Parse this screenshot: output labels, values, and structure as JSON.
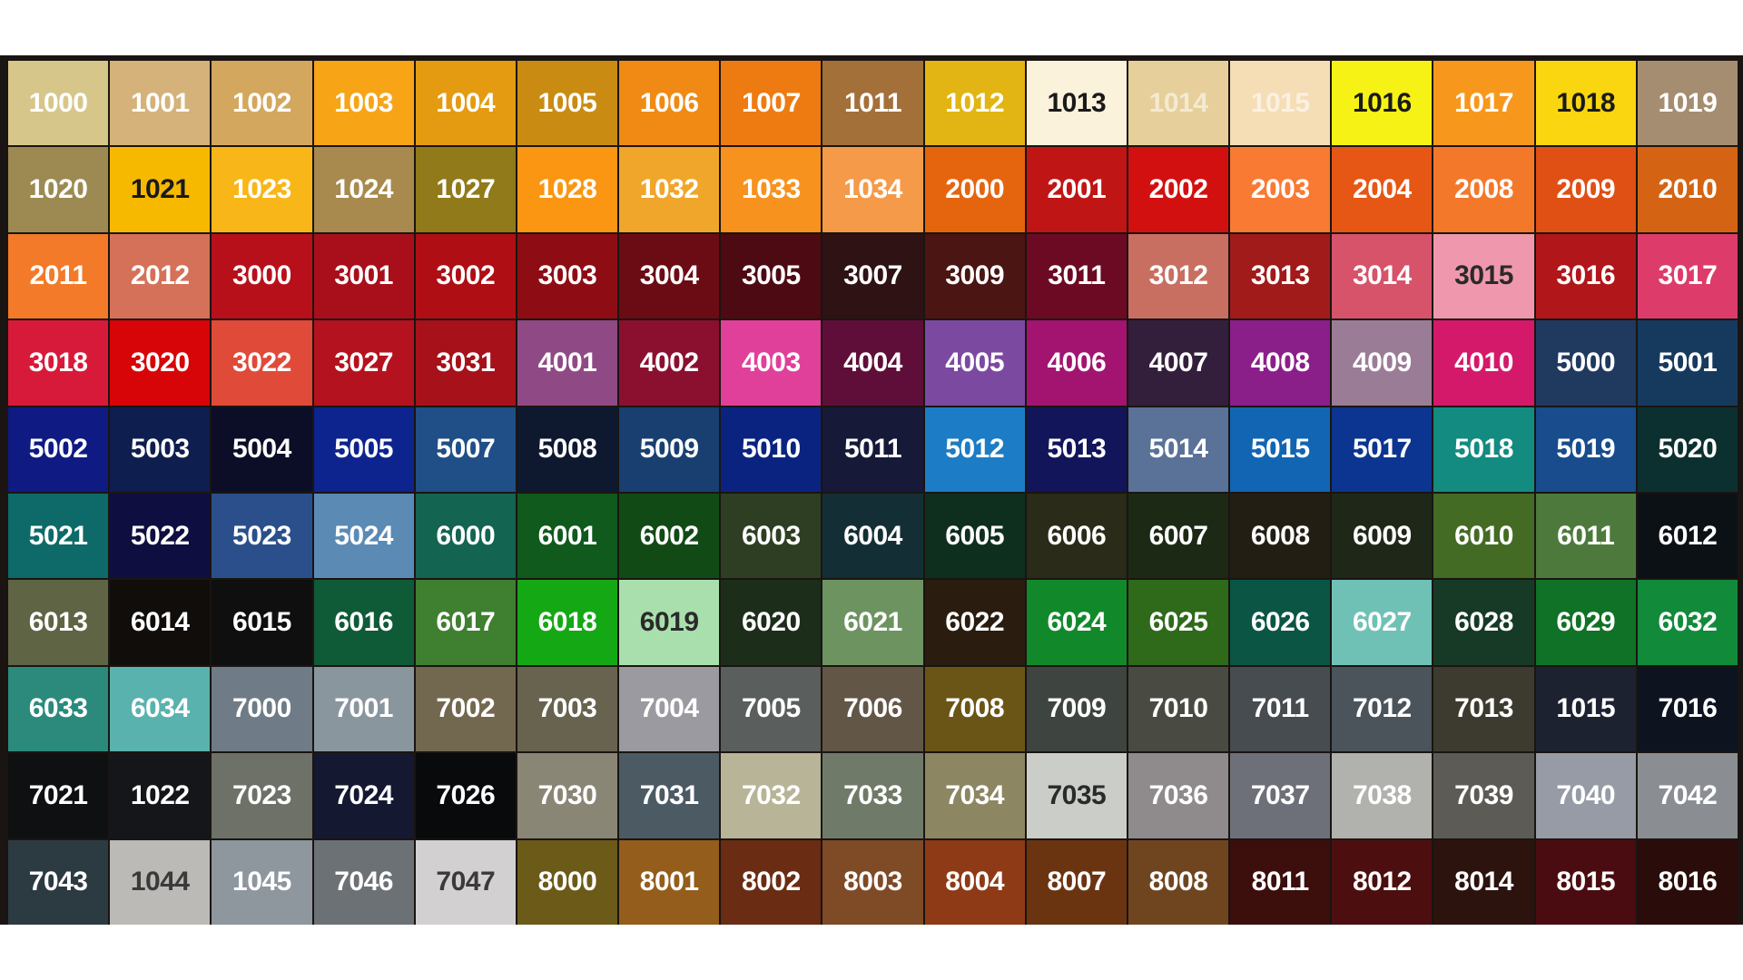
{
  "rows": [
    [
      [
        "1000",
        "#d6c68a"
      ],
      [
        "1001",
        "#d4b27a"
      ],
      [
        "1002",
        "#d3a75e"
      ],
      [
        "1003",
        "#f8a417"
      ],
      [
        "1004",
        "#e49b12"
      ],
      [
        "1005",
        "#c98b12"
      ],
      [
        "1006",
        "#f08a14"
      ],
      [
        "1007",
        "#ee7b12"
      ],
      [
        "1011",
        "#a4703a"
      ],
      [
        "1012",
        "#e2b514"
      ],
      [
        "1013",
        "#fbf2dc",
        "#1a1a1a"
      ],
      [
        "1014",
        "#e6cf9a",
        "#f4ead2"
      ],
      [
        "1015",
        "#f5ddb6",
        "#fbf1e2"
      ],
      [
        "1016",
        "#f7f216",
        "#1a1a1a"
      ],
      [
        "1017",
        "#f7981d"
      ],
      [
        "1018",
        "#fad610",
        "#1a1a1a"
      ],
      [
        "1019",
        "#a48d70"
      ]
    ],
    [
      [
        "1020",
        "#9c8a52"
      ],
      [
        "1021",
        "#f6b900",
        "#1a1a1a"
      ],
      [
        "1023",
        "#f9b619"
      ],
      [
        "1024",
        "#a88a4e"
      ],
      [
        "1027",
        "#917a1a"
      ],
      [
        "1028",
        "#fa9612"
      ],
      [
        "1032",
        "#f0a62a"
      ],
      [
        "1033",
        "#f8921e"
      ],
      [
        "1034",
        "#f59a48"
      ],
      [
        "2000",
        "#e5650f"
      ],
      [
        "2001",
        "#c01515"
      ],
      [
        "2002",
        "#d31010"
      ],
      [
        "2003",
        "#f97a32"
      ],
      [
        "2004",
        "#e65614"
      ],
      [
        "2008",
        "#f4782a"
      ],
      [
        "2009",
        "#e04f14"
      ],
      [
        "2010",
        "#d46413"
      ]
    ],
    [
      [
        "2011",
        "#f27a28"
      ],
      [
        "2012",
        "#d57158"
      ],
      [
        "3000",
        "#b8101a"
      ],
      [
        "3001",
        "#a80f1a"
      ],
      [
        "3002",
        "#ae0e14"
      ],
      [
        "3003",
        "#8e0d14"
      ],
      [
        "3004",
        "#6b0c14"
      ],
      [
        "3005",
        "#4e0a12"
      ],
      [
        "3007",
        "#2e1214"
      ],
      [
        "3009",
        "#4a1512"
      ],
      [
        "3011",
        "#6c0a24"
      ],
      [
        "3012",
        "#c86f62"
      ],
      [
        "3013",
        "#a11b1b"
      ],
      [
        "3014",
        "#d6536a"
      ],
      [
        "3015",
        "#ef98ad",
        "#2a2a2a"
      ],
      [
        "3016",
        "#b1161a"
      ],
      [
        "3017",
        "#dd3c6a"
      ]
    ],
    [
      [
        "3018",
        "#d81a3a"
      ],
      [
        "3020",
        "#d70508"
      ],
      [
        "3022",
        "#e04a38"
      ],
      [
        "3027",
        "#b5121f"
      ],
      [
        "3031",
        "#a6111a"
      ],
      [
        "4001",
        "#8f4a85"
      ],
      [
        "4002",
        "#8b1030"
      ],
      [
        "4003",
        "#e0409a"
      ],
      [
        "4004",
        "#5e0e38"
      ],
      [
        "4005",
        "#7b4aa0"
      ],
      [
        "4006",
        "#a21470"
      ],
      [
        "4007",
        "#331e3c"
      ],
      [
        "4008",
        "#8a1f8a"
      ],
      [
        "4009",
        "#9b7c97"
      ],
      [
        "4010",
        "#d4196a"
      ],
      [
        "5000",
        "#20395f"
      ],
      [
        "5001",
        "#163a5e"
      ]
    ],
    [
      [
        "5002",
        "#0f1a82"
      ],
      [
        "5003",
        "#0e1e4f"
      ],
      [
        "5004",
        "#0c0e28"
      ],
      [
        "5005",
        "#0d238e"
      ],
      [
        "5007",
        "#1f4f86"
      ],
      [
        "5008",
        "#0e1930"
      ],
      [
        "5009",
        "#183f70"
      ],
      [
        "5010",
        "#0b2380"
      ],
      [
        "5011",
        "#161938"
      ],
      [
        "5012",
        "#1c7cc5"
      ],
      [
        "5013",
        "#12155a"
      ],
      [
        "5014",
        "#5a7198"
      ],
      [
        "5015",
        "#1165b3"
      ],
      [
        "5017",
        "#0b3590"
      ],
      [
        "5018",
        "#138b80"
      ],
      [
        "5019",
        "#184c8c"
      ],
      [
        "5020",
        "#0c3030"
      ]
    ],
    [
      [
        "5021",
        "#0d6a68"
      ],
      [
        "5022",
        "#0e0e40"
      ],
      [
        "5023",
        "#2a4f8a"
      ],
      [
        "5024",
        "#5b8ab4"
      ],
      [
        "6000",
        "#136450"
      ],
      [
        "6001",
        "#0f5a1c"
      ],
      [
        "6002",
        "#124a16"
      ],
      [
        "6003",
        "#2e3e22"
      ],
      [
        "6004",
        "#132f35"
      ],
      [
        "6005",
        "#0e2e1e"
      ],
      [
        "6006",
        "#2a2b18"
      ],
      [
        "6007",
        "#1c2a15"
      ],
      [
        "6008",
        "#231e14"
      ],
      [
        "6009",
        "#1f2818"
      ],
      [
        "6010",
        "#436b23"
      ],
      [
        "6011",
        "#4d7a3c"
      ],
      [
        "6012",
        "#0c1116"
      ]
    ],
    [
      [
        "6013",
        "#5f6444"
      ],
      [
        "6014",
        "#110d0b"
      ],
      [
        "6015",
        "#0e0f0e"
      ],
      [
        "6016",
        "#0f5a37"
      ],
      [
        "6017",
        "#3e7f30"
      ],
      [
        "6018",
        "#15a815"
      ],
      [
        "6019",
        "#a9dfac",
        "#2a2a2a"
      ],
      [
        "6020",
        "#1c2e1a"
      ],
      [
        "6021",
        "#6d9460"
      ],
      [
        "6022",
        "#2a1d10"
      ],
      [
        "6024",
        "#11892a"
      ],
      [
        "6025",
        "#2e6a1a"
      ],
      [
        "6026",
        "#0b5545"
      ],
      [
        "6027",
        "#6fc1b6"
      ],
      [
        "6028",
        "#173a26"
      ],
      [
        "6029",
        "#0f7226"
      ],
      [
        "6032",
        "#118a3a"
      ]
    ],
    [
      [
        "6033",
        "#2b8a7c"
      ],
      [
        "6034",
        "#5ab2ae"
      ],
      [
        "7000",
        "#6f7b86"
      ],
      [
        "7001",
        "#8a969e"
      ],
      [
        "7002",
        "#72684f"
      ],
      [
        "7003",
        "#67634f"
      ],
      [
        "7004",
        "#9a9aa0"
      ],
      [
        "7005",
        "#5a5e5c"
      ],
      [
        "7006",
        "#625646"
      ],
      [
        "7008",
        "#6b5516"
      ],
      [
        "7009",
        "#3e4540"
      ],
      [
        "7010",
        "#494b42"
      ],
      [
        "7011",
        "#474c51"
      ],
      [
        "7012",
        "#4a545a"
      ],
      [
        "7013",
        "#3d3b30"
      ],
      [
        "1015",
        "#1c2230"
      ],
      [
        "7016",
        "#0d1420"
      ]
    ],
    [
      [
        "7021",
        "#0e1012"
      ],
      [
        "1022",
        "#141619"
      ],
      [
        "7023",
        "#6d7168"
      ],
      [
        "7024",
        "#141830"
      ],
      [
        "7026",
        "#080a0c"
      ],
      [
        "7030",
        "#8a8676"
      ],
      [
        "7031",
        "#4c5a64"
      ],
      [
        "7032",
        "#b8b498"
      ],
      [
        "7033",
        "#707a68"
      ],
      [
        "7034",
        "#8c8662"
      ],
      [
        "7035",
        "#cbcdc8",
        "#2a2a2a"
      ],
      [
        "7036",
        "#8f8a8c"
      ],
      [
        "7037",
        "#6d7078"
      ],
      [
        "7038",
        "#b1b2ae"
      ],
      [
        "7039",
        "#5c5b56"
      ],
      [
        "7040",
        "#969ba5"
      ],
      [
        "7042",
        "#8a8e92"
      ]
    ],
    [
      [
        "7043",
        "#2c3a42"
      ],
      [
        "1044",
        "#bcbab6",
        "#3a3a3a"
      ],
      [
        "1045",
        "#8e969e"
      ],
      [
        "7046",
        "#6c7176"
      ],
      [
        "7047",
        "#d2d0d0",
        "#3a3a3a"
      ],
      [
        "8000",
        "#6b5a18"
      ],
      [
        "8001",
        "#945d1c"
      ],
      [
        "8002",
        "#6a2c12"
      ],
      [
        "8003",
        "#7f4a26"
      ],
      [
        "8004",
        "#8e3a16"
      ],
      [
        "8007",
        "#6b3411"
      ],
      [
        "8008",
        "#6f4520"
      ],
      [
        "8011",
        "#3c0e0c"
      ],
      [
        "8012",
        "#4c0e0f"
      ],
      [
        "8014",
        "#2c130d"
      ],
      [
        "8015",
        "#4a0c10"
      ],
      [
        "8016",
        "#2a0c0a"
      ]
    ]
  ]
}
